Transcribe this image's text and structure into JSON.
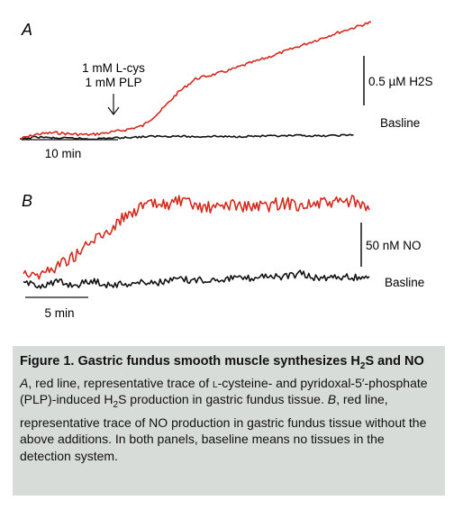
{
  "chart_data": [
    {
      "panel": "A",
      "type": "line",
      "series": [
        {
          "name": "",
          "color": "#d42a1e",
          "x": [
            0,
            3,
            6,
            9,
            12,
            15,
            18,
            21,
            24,
            27,
            30,
            33,
            36,
            39,
            42,
            45,
            48,
            51,
            54,
            57,
            60
          ],
          "values": [
            0.05,
            0.12,
            0.14,
            0.12,
            0.11,
            0.14,
            0.18,
            0.24,
            0.45,
            0.72,
            0.92,
            0.98,
            1.05,
            1.14,
            1.22,
            1.31,
            1.4,
            1.49,
            1.58,
            1.66,
            1.74
          ]
        },
        {
          "name": "Basline",
          "color": "#111111",
          "x": [
            0,
            3,
            6,
            9,
            12,
            15,
            18,
            21,
            24,
            27,
            30,
            33,
            36,
            39,
            42,
            45,
            48,
            51,
            54,
            57
          ],
          "values": [
            0.04,
            0.08,
            0.06,
            0.06,
            0.05,
            0.06,
            0.07,
            0.08,
            0.09,
            0.09,
            0.08,
            0.09,
            0.08,
            0.09,
            0.09,
            0.09,
            0.1,
            0.09,
            0.1,
            0.11
          ]
        }
      ],
      "xlim": [
        0,
        60
      ],
      "ylim": [
        0,
        1.8
      ],
      "annotation": {
        "lines": [
          "1 mM L-cys",
          "1 mM PLP"
        ],
        "at_x": 15
      },
      "scale_bar_y": {
        "label": "0.5 µM H2S",
        "value": 0.5
      },
      "scale_bar_x": {
        "label": "10 min",
        "value": 10
      }
    },
    {
      "panel": "B",
      "type": "line",
      "series": [
        {
          "name": "",
          "color": "#d42a1e",
          "x": [
            0,
            2,
            4,
            6,
            8,
            10,
            12,
            14,
            16,
            18,
            20,
            22,
            24,
            26,
            28,
            30,
            32,
            34,
            36,
            38,
            40
          ],
          "values": [
            20,
            14,
            28,
            42,
            62,
            78,
            100,
            112,
            113,
            118,
            110,
            108,
            114,
            110,
            111,
            116,
            113,
            114,
            116,
            118,
            106
          ]
        },
        {
          "name": "Basline",
          "color": "#111111",
          "x": [
            0,
            2,
            4,
            6,
            8,
            10,
            12,
            14,
            16,
            18,
            20,
            22,
            24,
            26,
            28,
            30,
            32,
            34,
            36,
            38,
            40
          ],
          "values": [
            2,
            0,
            4,
            0,
            6,
            0,
            2,
            4,
            4,
            8,
            6,
            8,
            10,
            9,
            14,
            10,
            16,
            9,
            12,
            10,
            12
          ]
        }
      ],
      "xlim": [
        0,
        40
      ],
      "ylim": [
        -15,
        130
      ],
      "scale_bar_y": {
        "label": "50 nM NO",
        "value": 50
      },
      "scale_bar_x": {
        "label": "5 min",
        "value": 5
      }
    }
  ],
  "caption": {
    "title_prefix": "Figure 1. Gastric fundus smooth muscle synthesizes H",
    "title_sub": "2",
    "title_suffix": "S and NO",
    "body_a_label": "A",
    "body_a_1": ", red line, representative trace of ",
    "body_a_l": "l",
    "body_a_2": "-cysteine- and pyridoxal-5′-phosphate (PLP)-induced H",
    "body_a_sub": "2",
    "body_a_3": "S production in gastric fundus tissue. ",
    "body_b_label": "B",
    "body_b": ", red line, representative trace of NO production in gastric fundus tissue without the above additions. In both panels, baseline means no tissues in the detection system."
  }
}
